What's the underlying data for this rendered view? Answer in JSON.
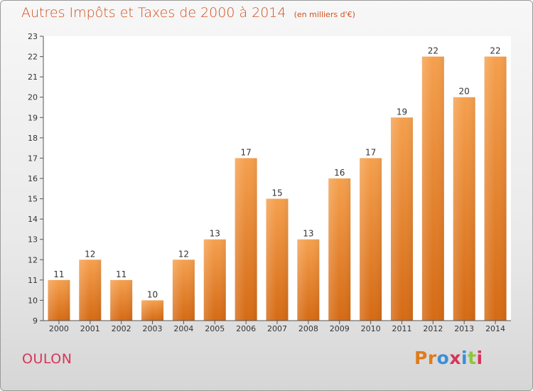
{
  "chart_data": {
    "type": "bar",
    "title": "Autres Impôts et Taxes de 2000 à 2014",
    "subtitle": "(en milliers d'€)",
    "xlabel": "",
    "ylabel": "",
    "categories": [
      "2000",
      "2001",
      "2002",
      "2003",
      "2004",
      "2005",
      "2006",
      "2007",
      "2008",
      "2009",
      "2010",
      "2011",
      "2012",
      "2013",
      "2014"
    ],
    "values": [
      11,
      12,
      11,
      10,
      12,
      13,
      17,
      15,
      13,
      16,
      17,
      19,
      22,
      20,
      22
    ],
    "value_labels": [
      "11",
      "12",
      "11",
      "10",
      "12",
      "13",
      "17",
      "15",
      "13",
      "16",
      "17",
      "19",
      "22",
      "20",
      "22"
    ],
    "ylim": [
      9,
      23
    ],
    "yticks": [
      "9",
      "10",
      "11",
      "12",
      "13",
      "14",
      "15",
      "16",
      "17",
      "18",
      "19",
      "20",
      "21",
      "22",
      "23"
    ],
    "grid": false,
    "bar_color_top": "#f5a04e",
    "bar_color_bottom": "#d56a14"
  },
  "commune": "OULON",
  "logo": {
    "letters": [
      "P",
      "r",
      "o",
      "x",
      "i",
      "t",
      "i"
    ],
    "colors": [
      "#e07b1c",
      "#e07b1c",
      "#3a8fd8",
      "#d8345a",
      "#3a8fd8",
      "#8ec63f",
      "#d8345a"
    ]
  }
}
